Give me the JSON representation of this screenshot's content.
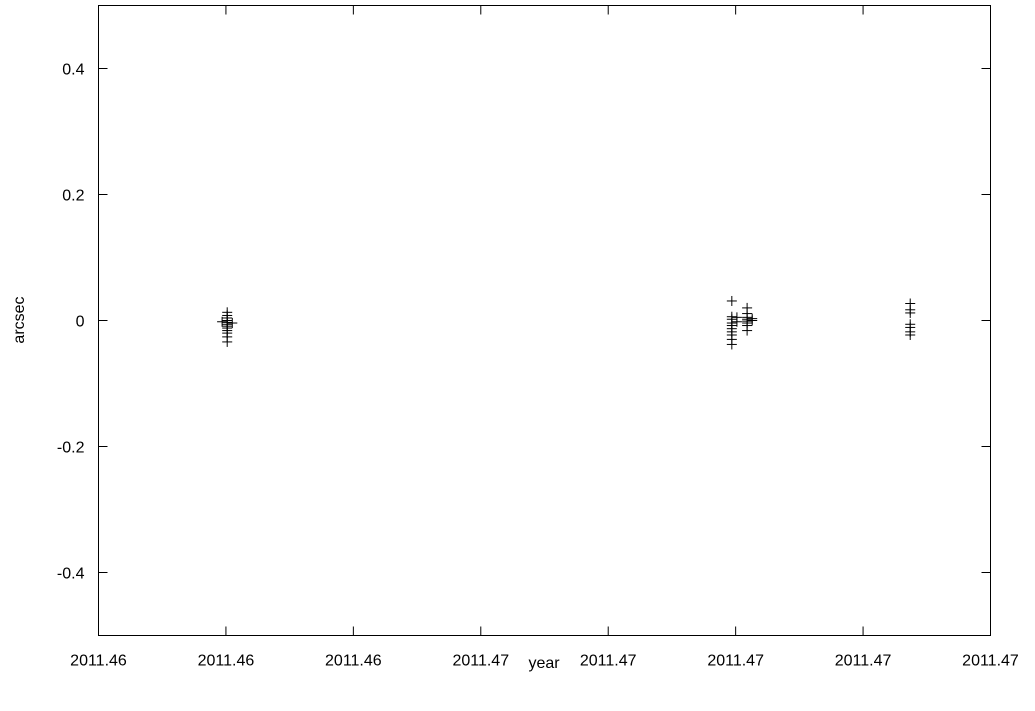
{
  "chart_data": {
    "type": "scatter",
    "title": "",
    "xlabel": "year",
    "ylabel": "arcsec",
    "x_tick_labels": [
      "2011.46",
      "2011.46",
      "2011.46",
      "2011.47",
      "2011.47",
      "2011.47",
      "2011.47",
      "2011.47"
    ],
    "y_tick_labels": [
      "-0.4",
      "-0.2",
      "0",
      "0.2",
      "0.4"
    ],
    "xlim": [
      2011.4633,
      2011.4703
    ],
    "ylim": [
      -0.5,
      0.5
    ],
    "grid": false,
    "marker": "plus",
    "series": [
      {
        "points": [
          [
            2011.46431,
            0.013
          ],
          [
            2011.46431,
            0.008
          ],
          [
            2011.46431,
            0.004
          ],
          [
            2011.46431,
            0.0
          ],
          [
            2011.46431,
            -0.003
          ],
          [
            2011.46431,
            -0.006
          ],
          [
            2011.46431,
            -0.009
          ],
          [
            2011.46431,
            -0.012
          ],
          [
            2011.46431,
            -0.016
          ],
          [
            2011.46431,
            -0.02
          ],
          [
            2011.46431,
            -0.026
          ],
          [
            2011.46431,
            -0.034
          ],
          [
            2011.46427,
            -0.002
          ],
          [
            2011.46435,
            -0.004
          ],
          [
            2011.46827,
            0.031
          ],
          [
            2011.46827,
            0.006
          ],
          [
            2011.46827,
            0.002
          ],
          [
            2011.46827,
            -0.004
          ],
          [
            2011.46827,
            -0.008
          ],
          [
            2011.46827,
            -0.013
          ],
          [
            2011.46827,
            -0.018
          ],
          [
            2011.46827,
            -0.023
          ],
          [
            2011.46827,
            -0.03
          ],
          [
            2011.46827,
            -0.038
          ],
          [
            2011.46831,
            0.005
          ],
          [
            2011.46831,
            -0.002
          ],
          [
            2011.46839,
            0.02
          ],
          [
            2011.46839,
            0.011
          ],
          [
            2011.46839,
            0.005
          ],
          [
            2011.46839,
            0.002
          ],
          [
            2011.46839,
            -0.001
          ],
          [
            2011.46839,
            -0.004
          ],
          [
            2011.46839,
            -0.008
          ],
          [
            2011.46839,
            -0.016
          ],
          [
            2011.46843,
            0.003
          ],
          [
            2011.46843,
            0.0
          ],
          [
            2011.46967,
            0.027
          ],
          [
            2011.46967,
            0.017
          ],
          [
            2011.46967,
            0.012
          ],
          [
            2011.46967,
            -0.006
          ],
          [
            2011.46967,
            -0.011
          ],
          [
            2011.46967,
            -0.018
          ],
          [
            2011.46967,
            -0.023
          ]
        ]
      }
    ]
  }
}
